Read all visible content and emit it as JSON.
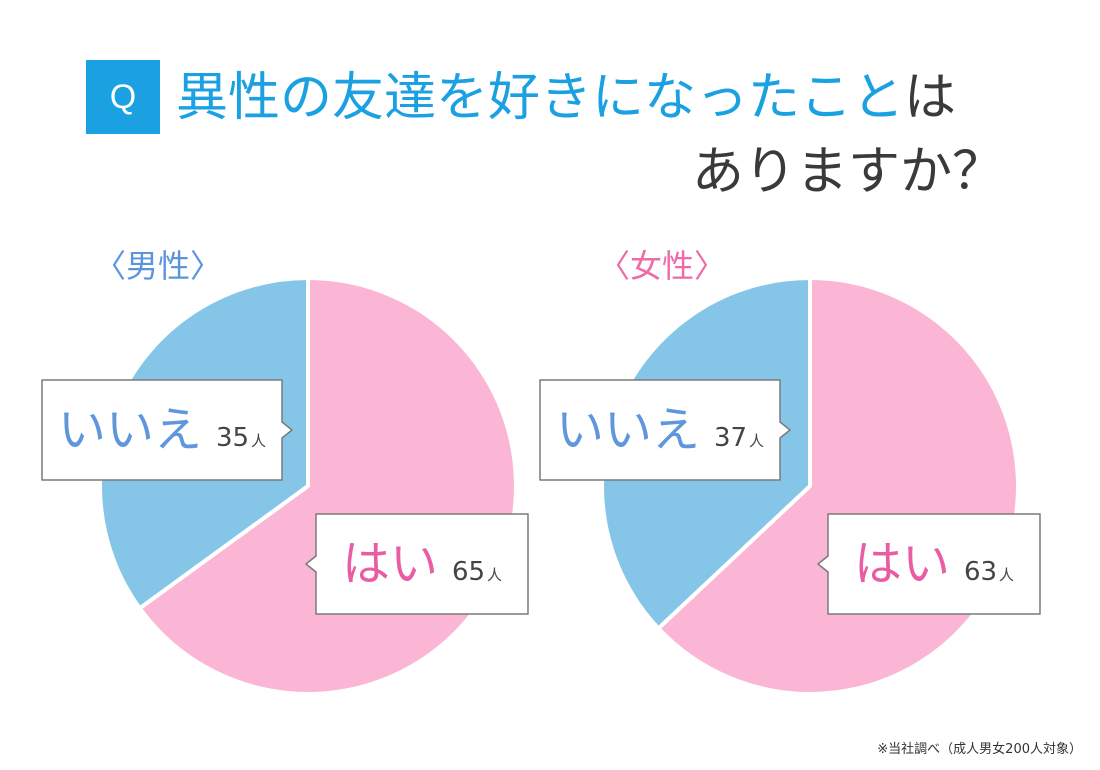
{
  "question": {
    "badge": "Q",
    "line1_highlight": "異性の友達を好きになったこと",
    "line1_rest": "は",
    "line2": "ありますか？"
  },
  "colors": {
    "accent_blue": "#1ba1e2",
    "yes_pink": "#fbb6d6",
    "no_blue": "#85c6e8",
    "yes_text": "#e85da4",
    "no_text": "#5f96dc",
    "male_label": "#5b95dc",
    "female_label": "#ee6aa9"
  },
  "footnote": "※当社調べ（成人男女200人対象）",
  "chart_data": [
    {
      "type": "pie",
      "title": "〈男性〉",
      "unit": "人",
      "slices": [
        {
          "label": "はい",
          "value": 65,
          "color": "#fbb6d6",
          "text_color": "#e85da4"
        },
        {
          "label": "いいえ",
          "value": 35,
          "color": "#85c6e8",
          "text_color": "#5f96dc"
        }
      ]
    },
    {
      "type": "pie",
      "title": "〈女性〉",
      "unit": "人",
      "slices": [
        {
          "label": "はい",
          "value": 63,
          "color": "#fbb6d6",
          "text_color": "#e85da4"
        },
        {
          "label": "いいえ",
          "value": 37,
          "color": "#85c6e8",
          "text_color": "#5f96dc"
        }
      ]
    }
  ]
}
